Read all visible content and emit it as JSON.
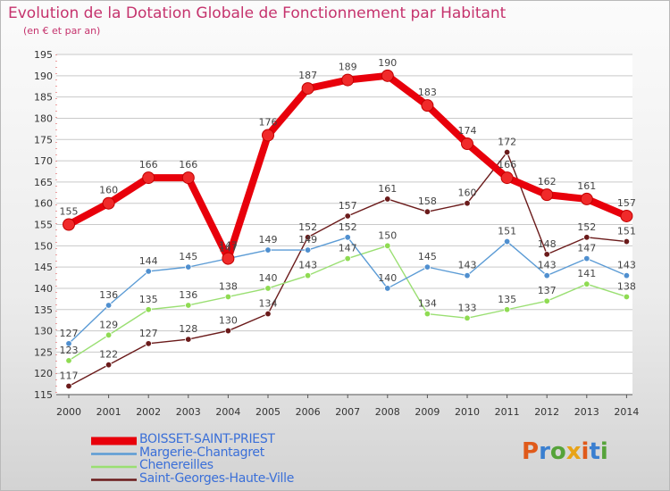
{
  "header": {
    "title": "Evolution de la Dotation Globale de Fonctionnement par Habitant",
    "subtitle": "(en € et par an)"
  },
  "logo": {
    "text": "Proxiti",
    "colors": [
      "#e05a1a",
      "#3a7fd0",
      "#56a33a",
      "#e8a317"
    ]
  },
  "colors": {
    "title": "#c5336d",
    "axis_text": "#333333",
    "grid": "#c9c9c9",
    "legend_text": "#3a6fd8"
  },
  "chart_data": {
    "type": "line",
    "title": "Evolution de la Dotation Globale de Fonctionnement par Habitant",
    "subtitle": "(en € et par an)",
    "xlabel": "",
    "ylabel": "",
    "x": [
      "2000",
      "2001",
      "2002",
      "2003",
      "2004",
      "2005",
      "2006",
      "2007",
      "2008",
      "2009",
      "2010",
      "2011",
      "2012",
      "2013",
      "2014"
    ],
    "ylim": [
      115,
      195
    ],
    "yticks": [
      115,
      120,
      125,
      130,
      135,
      140,
      145,
      150,
      155,
      160,
      165,
      170,
      175,
      180,
      185,
      190,
      195
    ],
    "grid": "horizontal",
    "legend_position": "bottom-left",
    "series": [
      {
        "name": "BOISSET-SAINT-PRIEST",
        "color": "#e8000b",
        "point_color": "#f02a2a",
        "thick": true,
        "values": [
          155,
          160,
          166,
          166,
          147,
          176,
          187,
          189,
          190,
          183,
          174,
          166,
          162,
          161,
          157
        ]
      },
      {
        "name": "Margerie-Chantagret",
        "color": "#5b9bd5",
        "point_color": "#4f8fcf",
        "thick": false,
        "values": [
          127,
          136,
          144,
          145,
          147,
          149,
          149,
          152,
          140,
          145,
          143,
          151,
          143,
          147,
          143
        ]
      },
      {
        "name": "Chenereilles",
        "color": "#9adf72",
        "point_color": "#8fdb52",
        "thick": false,
        "values": [
          123,
          129,
          135,
          136,
          138,
          140,
          143,
          147,
          150,
          134,
          133,
          135,
          137,
          141,
          138
        ]
      },
      {
        "name": "Saint-Georges-Haute-Ville",
        "color": "#6b1b1b",
        "point_color": "#6b1b1b",
        "thick": false,
        "values": [
          117,
          122,
          127,
          128,
          130,
          134,
          152,
          157,
          161,
          158,
          160,
          172,
          148,
          152,
          151
        ]
      }
    ]
  }
}
